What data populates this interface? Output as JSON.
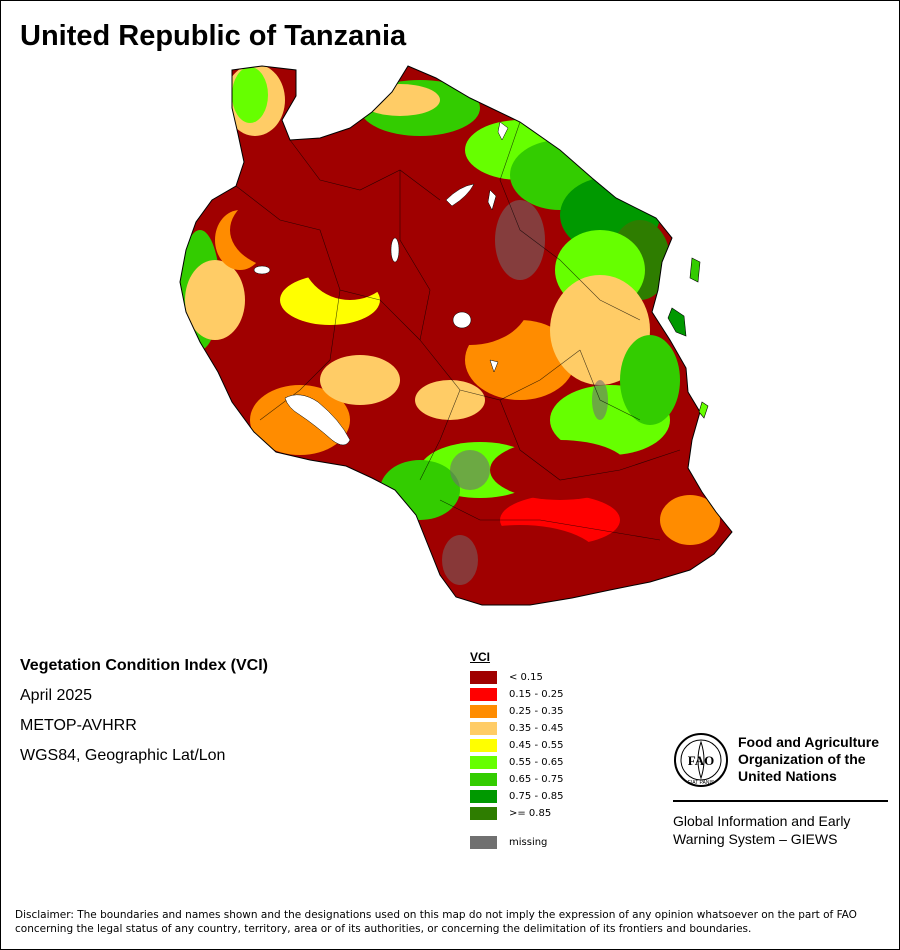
{
  "title": "United Republic of Tanzania",
  "info": {
    "heading": "Vegetation Condition Index (VCI)",
    "date": "April 2025",
    "sensor": "METOP-AVHRR",
    "projection": "WGS84, Geographic Lat/Lon"
  },
  "legend": {
    "title": "VCI",
    "items": [
      {
        "label": "< 0.15",
        "color": "#a00000"
      },
      {
        "label": "0.15 - 0.25",
        "color": "#ff0000"
      },
      {
        "label": "0.25 - 0.35",
        "color": "#ff8c00"
      },
      {
        "label": "0.35 - 0.45",
        "color": "#ffcc66"
      },
      {
        "label": "0.45 - 0.55",
        "color": "#ffff00"
      },
      {
        "label": "0.55 - 0.65",
        "color": "#66ff00"
      },
      {
        "label": "0.65 - 0.75",
        "color": "#33cc00"
      },
      {
        "label": "0.75 - 0.85",
        "color": "#009900"
      },
      {
        "label": ">= 0.85",
        "color": "#2e7d00"
      }
    ],
    "missing": {
      "label": "missing",
      "color": "#707070"
    }
  },
  "fao": {
    "logo_letters": "FAO",
    "logo_motto": "FIAT PANIS",
    "name_lines": [
      "Food and Agriculture",
      "Organization of the",
      "United Nations"
    ],
    "giews_lines": [
      "Global Information and Early",
      "Warning System – GIEWS"
    ]
  },
  "disclaimer": "Disclaimer: The boundaries and names shown and the designations used on this map do not imply the expression of any opinion whatsoever on the part of FAO concerning the legal status of any country, territory, area or of its authorities, or concerning the delimitation of its frontiers and boundaries."
}
